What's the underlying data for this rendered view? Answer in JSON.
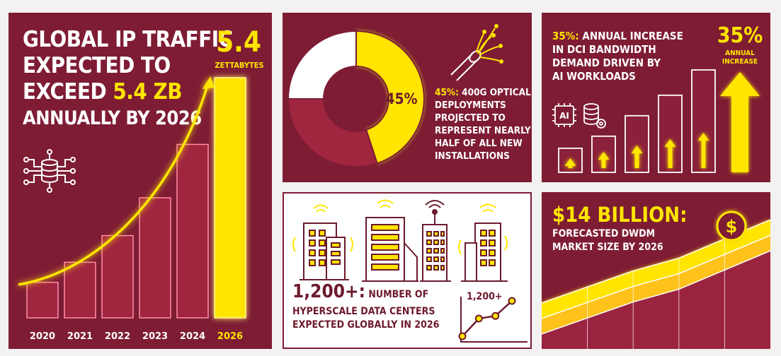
{
  "colors": {
    "maroon": "#7e1c34",
    "bar_maroon": "#a0263f",
    "yellow": "#ffe500",
    "white": "#ffffff"
  },
  "ip_traffic": {
    "title_line1": "GLOBAL IP TRAFFIC",
    "title_line2": "EXPECTED TO",
    "title_line3_prefix": "EXCEED ",
    "title_line3_highlight": "5.4 ZB",
    "title_line4": "ANNUALLY BY 2026",
    "big_value": "5.4",
    "big_unit": "ZETTABYTES",
    "icon": "database-network-icon",
    "chart_data": {
      "type": "bar",
      "categories": [
        "2020",
        "2021",
        "2022",
        "2023",
        "2024",
        "2026"
      ],
      "values": [
        0.8,
        1.25,
        1.85,
        2.7,
        3.9,
        5.4
      ],
      "highlight_index": 5,
      "trend": "rising-arrow"
    }
  },
  "optical": {
    "percent_label": "45%",
    "desc_highlight": "45%:",
    "desc_line1_rest": " 400G OPTICAL",
    "desc_line2": "DEPLOYMENTS",
    "desc_line3": "PROJECTED TO",
    "desc_line4": "REPRESENT NEARLY",
    "desc_line5": "HALF OF ALL NEW",
    "desc_line6": "INSTALLATIONS",
    "icon": "fiber-optic-cable-icon",
    "chart_data": {
      "type": "pie",
      "labels": [
        "",
        "",
        ""
      ],
      "values": [
        45,
        30,
        25
      ]
    }
  },
  "dci": {
    "title_highlight": "35%:",
    "title_line1_rest": " ANNUAL INCREASE",
    "title_line2": "IN DCI BANDWIDTH",
    "title_line3": "DEMAND DRIVEN BY",
    "title_line4": "AI WORKLOADS",
    "big_value": "35%",
    "big_sub1": "ANNUAL",
    "big_sub2": "INCREASE",
    "ai_chip_text": "AI",
    "icons": [
      "ai-chip-icon",
      "database-gear-icon",
      "up-arrow-icon"
    ],
    "chart_data": {
      "type": "bar",
      "categories": [
        "",
        "",
        "",
        "",
        ""
      ],
      "values": [
        1.0,
        1.5,
        2.35,
        3.2,
        4.25
      ]
    }
  },
  "hyperscale": {
    "value": "1,200+:",
    "desc_line1": " NUMBER OF",
    "desc_line2": "HYPERSCALE DATA CENTERS",
    "desc_line3": "EXPECTED GLOBALLY IN 2026",
    "mini_chart_label": "1,200+",
    "icons": [
      "building-wifi-icon",
      "building-wifi-icon",
      "building-antenna-icon",
      "building-wifi-icon"
    ],
    "chart_data": {
      "type": "line",
      "x": [
        1,
        2,
        3,
        4
      ],
      "y": [
        1,
        3,
        3.3,
        5
      ]
    }
  },
  "dwdm": {
    "value": "$14 BILLION:",
    "desc_line1": "FORECASTED DWDM",
    "desc_line2": "MARKET SIZE BY 2026",
    "dollar_symbol": "$",
    "icon": "dollar-coin-icon",
    "chart_data": {
      "type": "area",
      "x": [
        1,
        2,
        3,
        4,
        5,
        6
      ],
      "y": [
        1.0,
        1.5,
        2.0,
        2.4,
        3.0,
        3.6
      ]
    }
  }
}
